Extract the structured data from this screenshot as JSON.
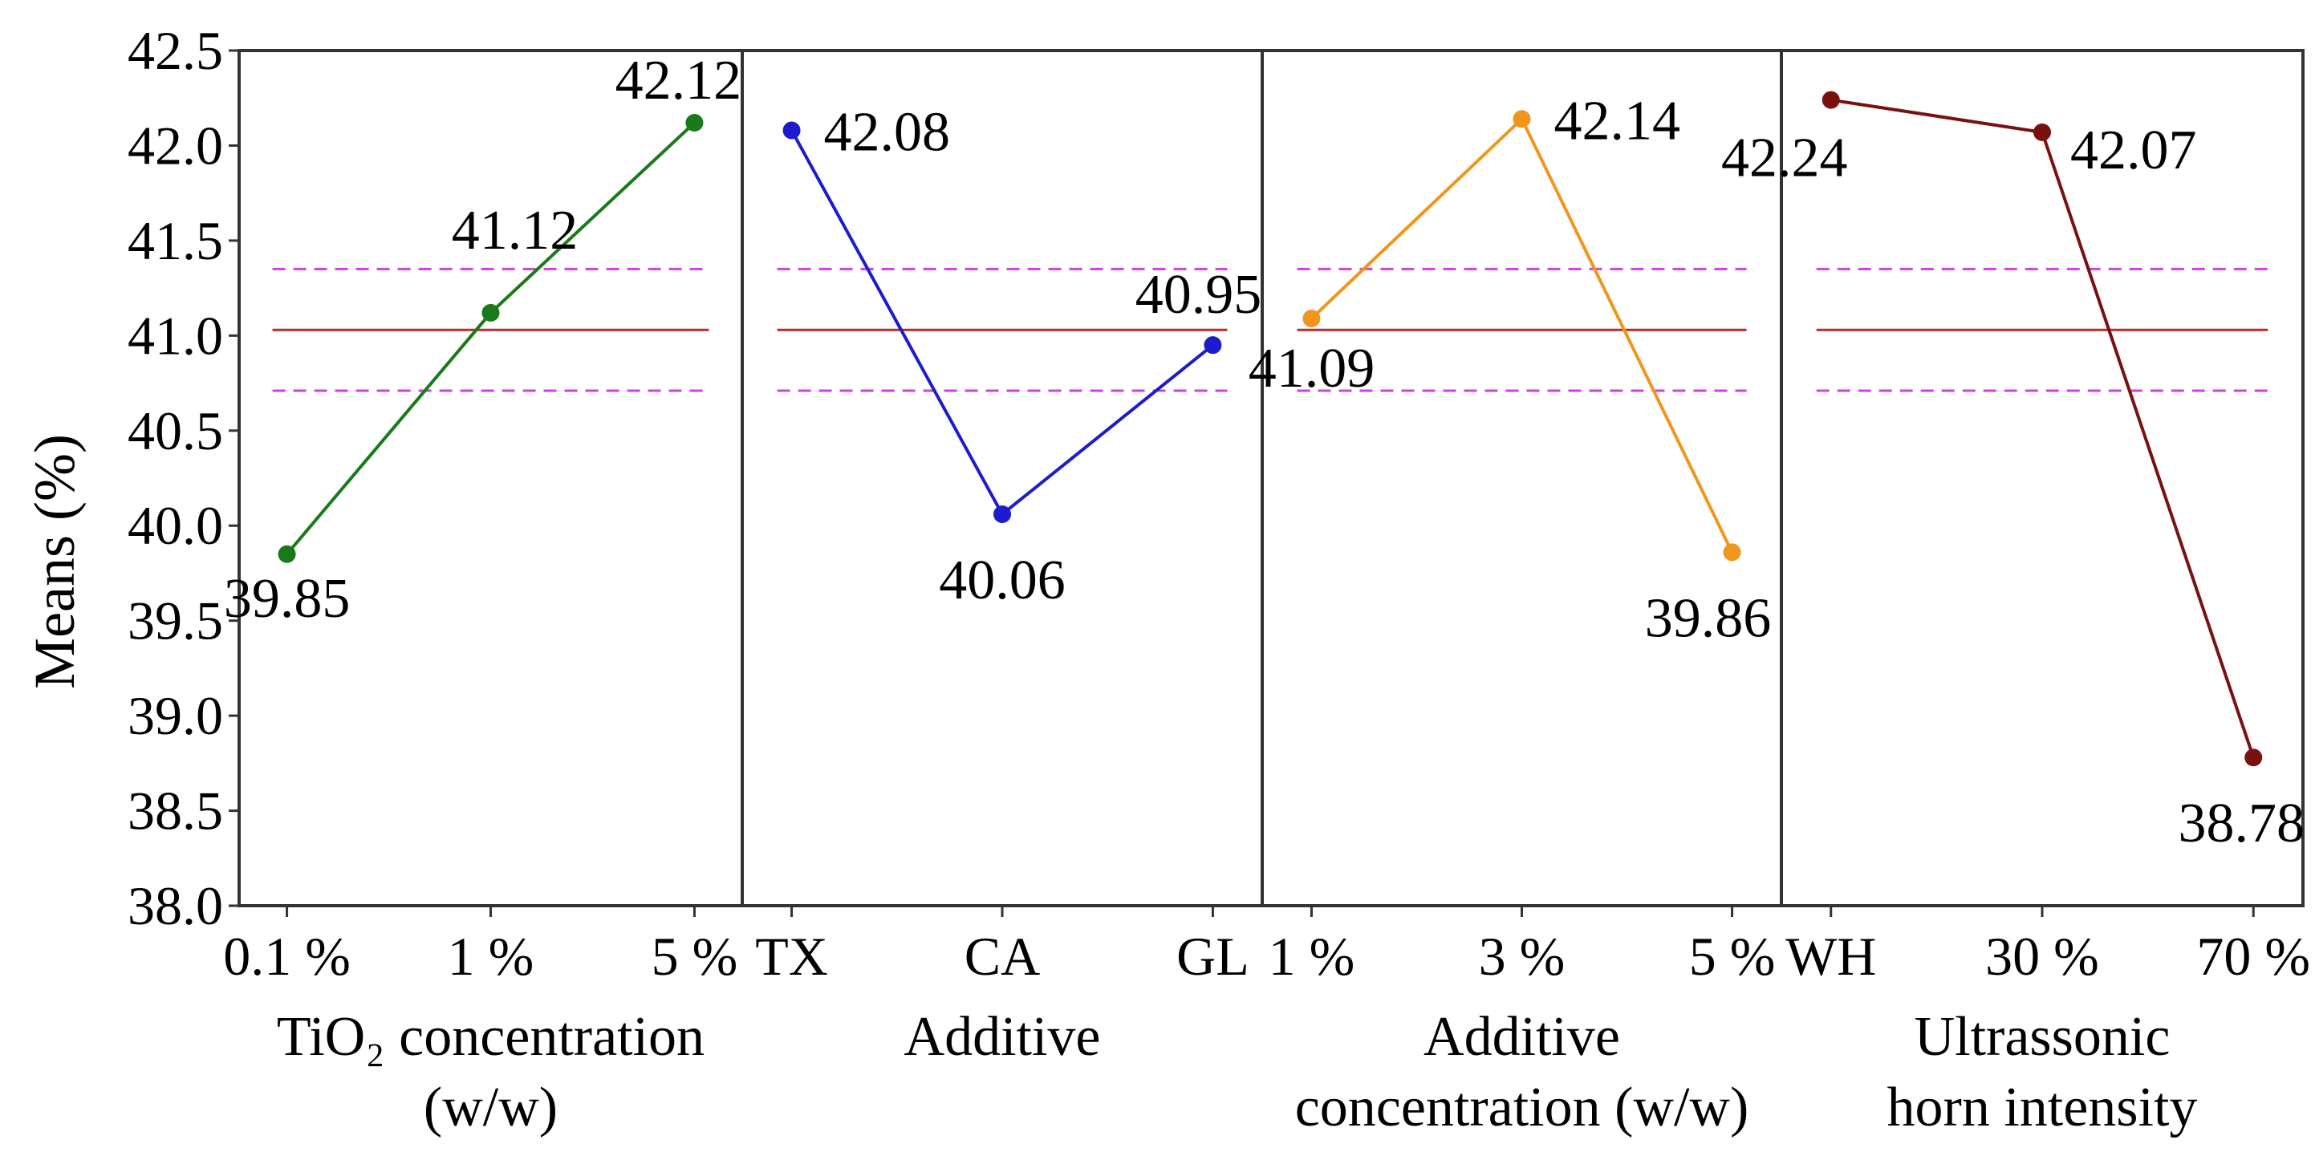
{
  "chart_data": {
    "type": "line",
    "title": "",
    "ylabel": "Means (%)",
    "ylim": [
      38.0,
      42.5
    ],
    "yticks": [
      "38.0",
      "38.5",
      "39.0",
      "39.5",
      "40.0",
      "40.5",
      "41.0",
      "41.5",
      "42.0",
      "42.5"
    ],
    "grand_mean": 41.03,
    "control_limits": [
      40.71,
      41.35
    ],
    "colors": {
      "mean_line": "#c0272d",
      "limit_line": "#cc44dd",
      "frame": "#333333"
    },
    "panels": [
      {
        "xlabel": [
          "TiO₂ concentration",
          "(w/w)"
        ],
        "categories": [
          "0.1 %",
          "1 %",
          "5 %"
        ],
        "values": [
          39.85,
          41.12,
          42.12
        ],
        "labels": [
          "39.85",
          "41.12",
          "42.12"
        ],
        "color": "#1a7a1a"
      },
      {
        "xlabel": [
          "Additive"
        ],
        "categories": [
          "TX",
          "CA",
          "GL"
        ],
        "values": [
          42.08,
          40.06,
          40.95
        ],
        "labels": [
          "42.08",
          "40.06",
          "40.95"
        ],
        "color": "#1c1ccc"
      },
      {
        "xlabel": [
          "Additive",
          "concentration (w/w)"
        ],
        "categories": [
          "1 %",
          "3 %",
          "5 %"
        ],
        "values": [
          41.09,
          42.14,
          39.86
        ],
        "labels": [
          "41.09",
          "42.14",
          "39.86"
        ],
        "color": "#f0961e"
      },
      {
        "xlabel": [
          "Ultrassonic",
          "horn intensity"
        ],
        "categories": [
          "WH",
          "30 %",
          "70 %"
        ],
        "values": [
          42.24,
          42.07,
          38.78
        ],
        "labels": [
          "42.24",
          "42.07",
          "38.78"
        ],
        "color": "#7a1010"
      }
    ]
  }
}
